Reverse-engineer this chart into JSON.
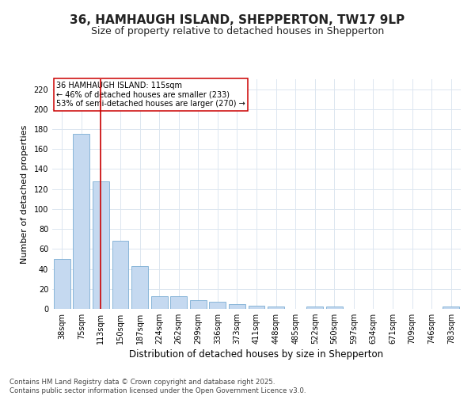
{
  "title": "36, HAMHAUGH ISLAND, SHEPPERTON, TW17 9LP",
  "subtitle": "Size of property relative to detached houses in Shepperton",
  "xlabel": "Distribution of detached houses by size in Shepperton",
  "ylabel": "Number of detached properties",
  "categories": [
    "38sqm",
    "75sqm",
    "113sqm",
    "150sqm",
    "187sqm",
    "224sqm",
    "262sqm",
    "299sqm",
    "336sqm",
    "373sqm",
    "411sqm",
    "448sqm",
    "485sqm",
    "522sqm",
    "560sqm",
    "597sqm",
    "634sqm",
    "671sqm",
    "709sqm",
    "746sqm",
    "783sqm"
  ],
  "values": [
    50,
    175,
    128,
    68,
    43,
    13,
    13,
    9,
    7,
    5,
    3,
    2,
    0,
    2,
    2,
    0,
    0,
    0,
    0,
    0,
    2
  ],
  "bar_color": "#c5d9f0",
  "bar_edge_color": "#7badd4",
  "vline_x": 2,
  "vline_color": "#cc0000",
  "annotation_text": "36 HAMHAUGH ISLAND: 115sqm\n← 46% of detached houses are smaller (233)\n53% of semi-detached houses are larger (270) →",
  "annotation_box_color": "#ffffff",
  "annotation_box_edge": "#cc0000",
  "ylim": [
    0,
    230
  ],
  "yticks": [
    0,
    20,
    40,
    60,
    80,
    100,
    120,
    140,
    160,
    180,
    200,
    220
  ],
  "title_fontsize": 11,
  "subtitle_fontsize": 9,
  "xlabel_fontsize": 8.5,
  "ylabel_fontsize": 8,
  "tick_fontsize": 7,
  "footer_text": "Contains HM Land Registry data © Crown copyright and database right 2025.\nContains public sector information licensed under the Open Government Licence v3.0.",
  "bg_color": "#ffffff",
  "grid_color": "#dce6f0",
  "annotation_fontsize": 7
}
